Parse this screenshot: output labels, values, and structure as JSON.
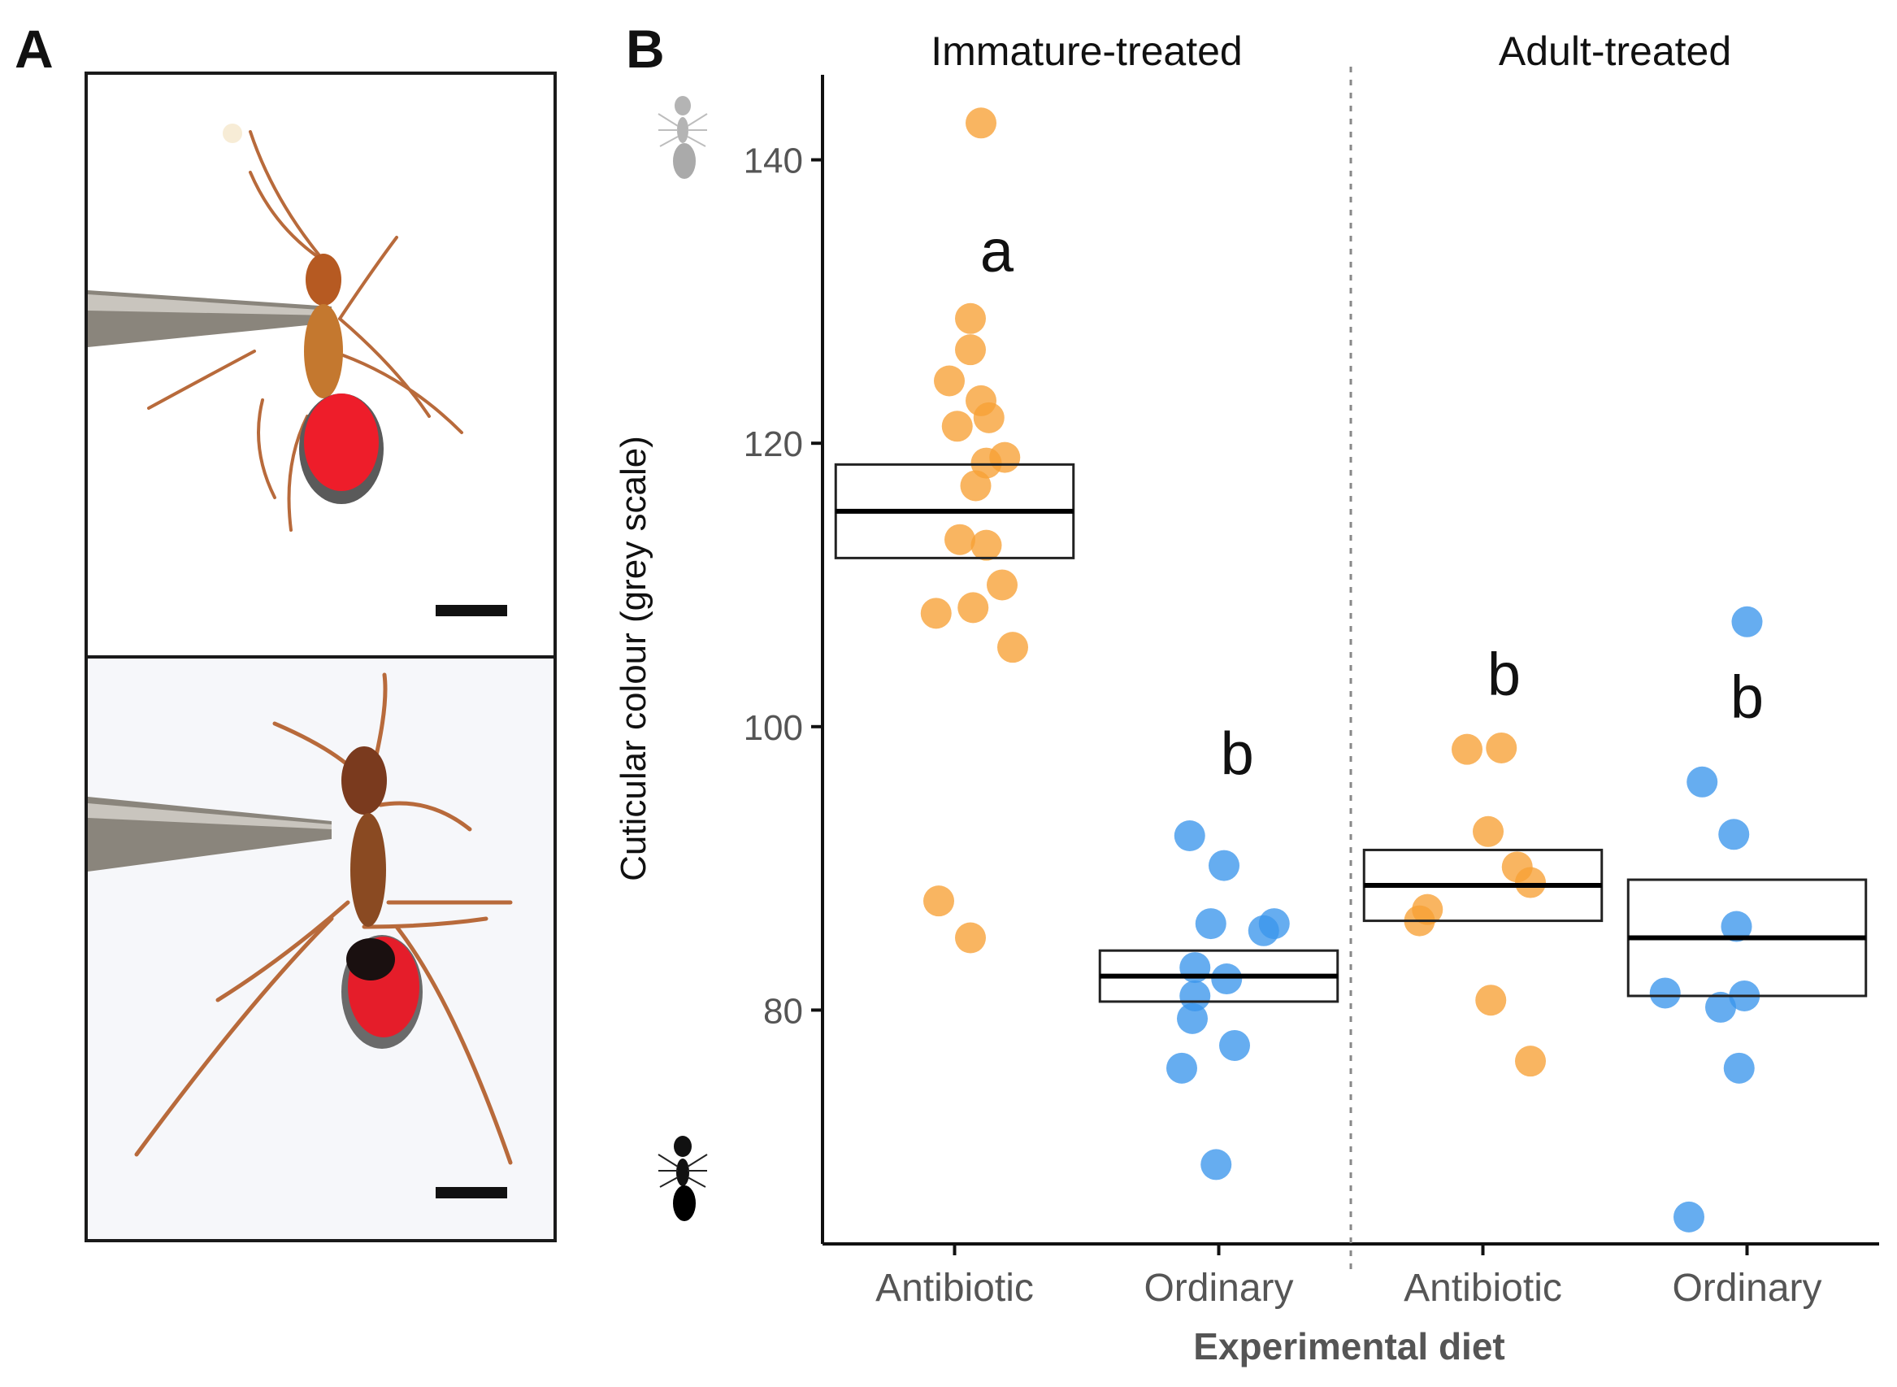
{
  "panels": {
    "a_label": "A",
    "b_label": "B"
  },
  "colors": {
    "antibiotic": "#f7a035",
    "ordinary": "#3b96ec"
  },
  "chart_data": {
    "type": "scatter",
    "title": "",
    "xlabel": "Experimental diet",
    "ylabel": "Cuticular colour (grey scale)",
    "ylim": [
      63.5,
      146
    ],
    "yticks": [
      80,
      100,
      120,
      140
    ],
    "facets": [
      "Immature-treated",
      "Adult-treated"
    ],
    "categories": [
      "Antibiotic",
      "Ordinary",
      "Antibiotic",
      "Ordinary"
    ],
    "groups": [
      {
        "facet": "Immature-treated",
        "diet": "Antibiotic",
        "letter": "a",
        "letter_y": 133.5,
        "mean": 115.2,
        "ci": [
          111.9,
          118.5
        ],
        "points": [
          {
            "dx": 0.1,
            "y": 142.6
          },
          {
            "dx": 0.06,
            "y": 128.8
          },
          {
            "dx": 0.06,
            "y": 126.6
          },
          {
            "dx": -0.02,
            "y": 124.4
          },
          {
            "dx": 0.1,
            "y": 123.0
          },
          {
            "dx": 0.13,
            "y": 121.8
          },
          {
            "dx": 0.01,
            "y": 121.2
          },
          {
            "dx": 0.19,
            "y": 119.0
          },
          {
            "dx": 0.12,
            "y": 118.6
          },
          {
            "dx": 0.08,
            "y": 117.0
          },
          {
            "dx": 0.02,
            "y": 113.2
          },
          {
            "dx": 0.12,
            "y": 112.8
          },
          {
            "dx": 0.18,
            "y": 110.0
          },
          {
            "dx": -0.07,
            "y": 108.0
          },
          {
            "dx": 0.07,
            "y": 108.4
          },
          {
            "dx": 0.22,
            "y": 105.6
          },
          {
            "dx": -0.06,
            "y": 87.7
          },
          {
            "dx": 0.06,
            "y": 85.1
          }
        ]
      },
      {
        "facet": "Immature-treated",
        "diet": "Ordinary",
        "letter": "b",
        "letter_y": 98.0,
        "mean": 82.4,
        "ci": [
          80.6,
          84.2
        ],
        "points": [
          {
            "dx": -0.11,
            "y": 92.3
          },
          {
            "dx": 0.02,
            "y": 90.2
          },
          {
            "dx": -0.03,
            "y": 86.1
          },
          {
            "dx": 0.21,
            "y": 86.1
          },
          {
            "dx": 0.17,
            "y": 85.6
          },
          {
            "dx": -0.09,
            "y": 83.0
          },
          {
            "dx": 0.03,
            "y": 82.2
          },
          {
            "dx": -0.09,
            "y": 81.0
          },
          {
            "dx": -0.1,
            "y": 79.4
          },
          {
            "dx": 0.06,
            "y": 77.5
          },
          {
            "dx": -0.14,
            "y": 75.9
          },
          {
            "dx": -0.01,
            "y": 69.1
          }
        ]
      },
      {
        "facet": "Adult-treated",
        "diet": "Antibiotic",
        "letter": "b",
        "letter_y": 103.6,
        "mean": 88.8,
        "ci": [
          86.3,
          91.3
        ],
        "points": [
          {
            "dx": -0.06,
            "y": 98.4
          },
          {
            "dx": 0.07,
            "y": 98.5
          },
          {
            "dx": 0.02,
            "y": 92.6
          },
          {
            "dx": 0.13,
            "y": 90.1
          },
          {
            "dx": 0.18,
            "y": 89.0
          },
          {
            "dx": -0.21,
            "y": 87.1
          },
          {
            "dx": -0.24,
            "y": 86.3
          },
          {
            "dx": 0.03,
            "y": 80.7
          },
          {
            "dx": 0.18,
            "y": 76.4
          }
        ]
      },
      {
        "facet": "Adult-treated",
        "diet": "Ordinary",
        "letter": "b",
        "letter_y": 102.0,
        "mean": 85.1,
        "ci": [
          81.0,
          89.2
        ],
        "points": [
          {
            "dx": 0.0,
            "y": 107.4
          },
          {
            "dx": -0.17,
            "y": 96.1
          },
          {
            "dx": -0.05,
            "y": 92.4
          },
          {
            "dx": -0.04,
            "y": 85.9
          },
          {
            "dx": -0.31,
            "y": 81.2
          },
          {
            "dx": -0.01,
            "y": 81.0
          },
          {
            "dx": -0.1,
            "y": 80.2
          },
          {
            "dx": -0.03,
            "y": 75.9
          },
          {
            "dx": -0.22,
            "y": 65.4
          }
        ]
      }
    ]
  }
}
